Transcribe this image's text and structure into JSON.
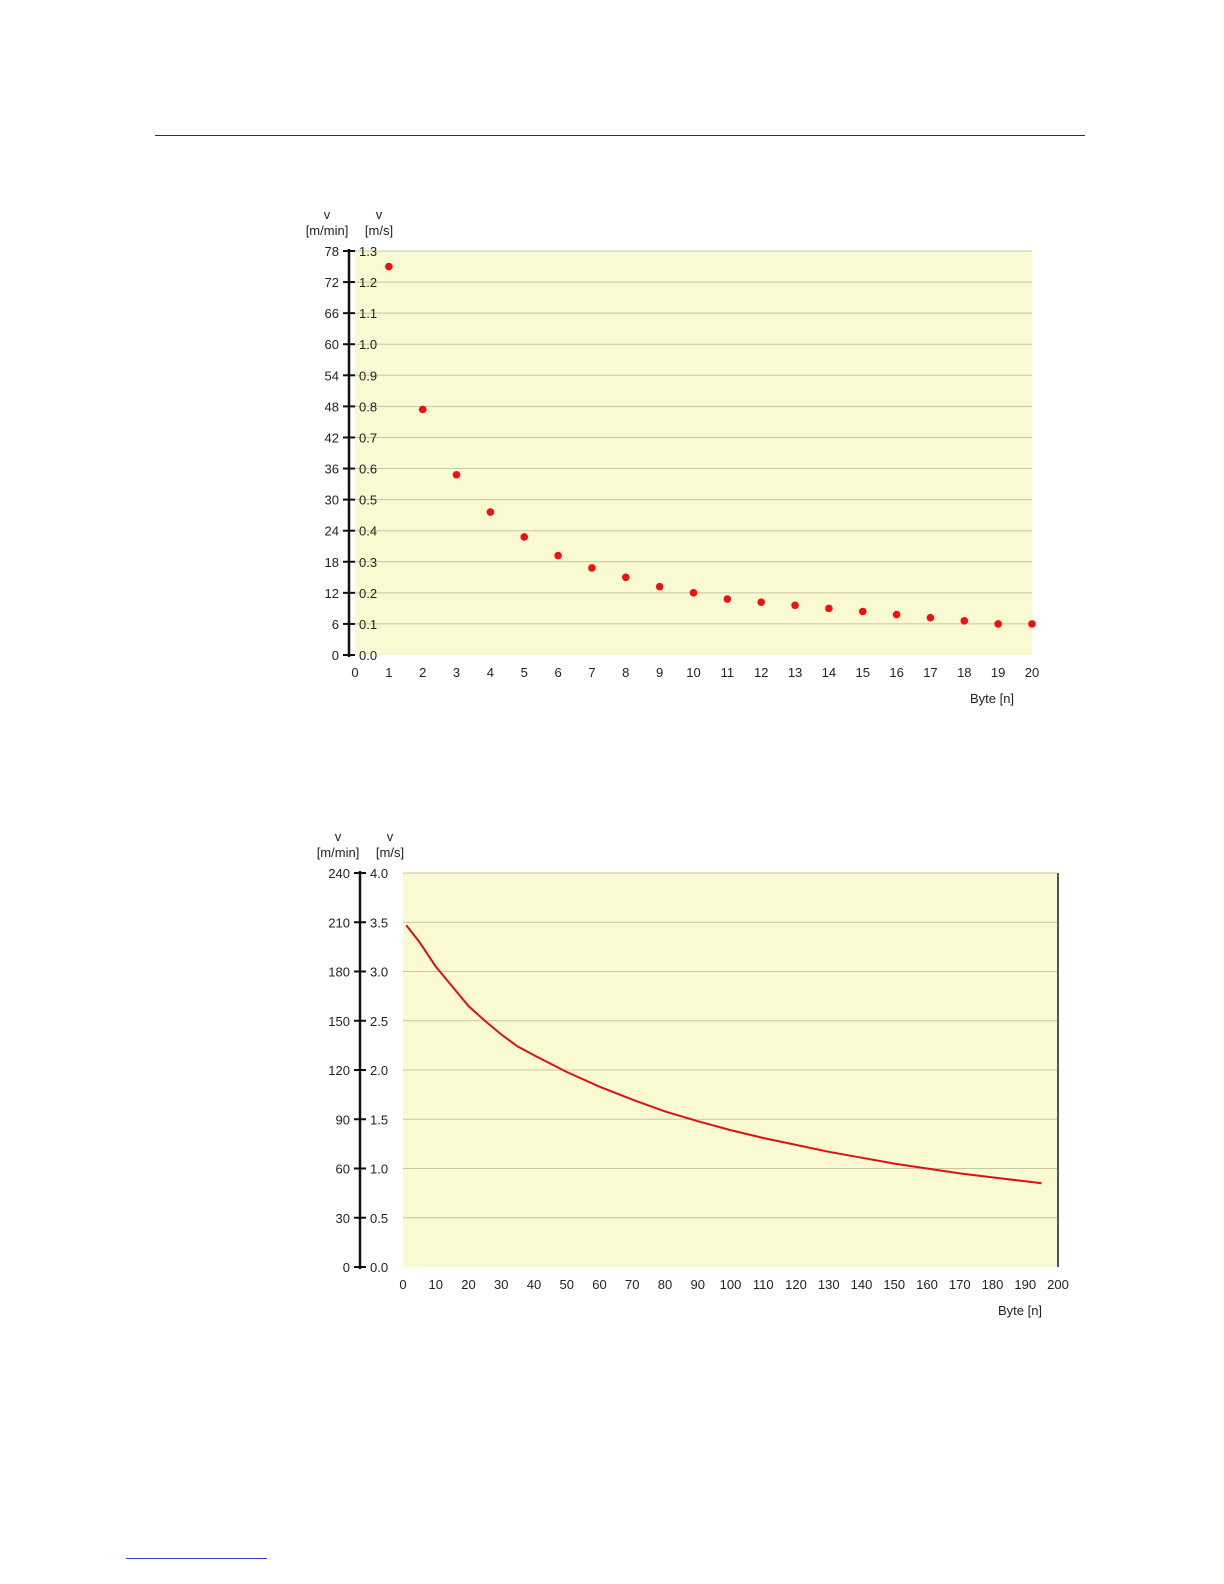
{
  "chart_data": [
    {
      "type": "scatter",
      "title": "",
      "y_axis_left": {
        "label_line1": "v",
        "label_line2": "[m/min]",
        "ticks": [
          0,
          6,
          12,
          18,
          24,
          30,
          36,
          42,
          48,
          54,
          60,
          66,
          72,
          78
        ]
      },
      "y_axis_right": {
        "label_line1": "v",
        "label_line2": "[m/s]",
        "ticks": [
          "0.0",
          "0.1",
          "0.2",
          "0.3",
          "0.4",
          "0.5",
          "0.6",
          "0.7",
          "0.8",
          "0.9",
          "1.0",
          "1.1",
          "1.2",
          "1.3"
        ]
      },
      "xlabel": "Byte [n]",
      "xlim": [
        0,
        20
      ],
      "ylim": [
        0,
        1.3
      ],
      "x_ticks": [
        0,
        1,
        2,
        3,
        4,
        5,
        6,
        7,
        8,
        9,
        10,
        11,
        12,
        13,
        14,
        15,
        16,
        17,
        18,
        19,
        20
      ],
      "grid": true,
      "colors": {
        "plot_bg": "#fafad2",
        "grid": "#c8c8a0",
        "point": "#ee1111"
      },
      "series": [
        {
          "x": [
            1,
            2,
            3,
            4,
            5,
            6,
            7,
            8,
            9,
            10,
            11,
            12,
            13,
            14,
            15,
            16,
            17,
            18,
            19,
            20
          ],
          "y": [
            1.25,
            0.79,
            0.58,
            0.46,
            0.38,
            0.32,
            0.28,
            0.25,
            0.22,
            0.2,
            0.18,
            0.17,
            0.16,
            0.15,
            0.14,
            0.13,
            0.12,
            0.11,
            0.1,
            0.1
          ]
        }
      ]
    },
    {
      "type": "line",
      "title": "",
      "y_axis_left": {
        "label_line1": "v",
        "label_line2": "[m/min]",
        "ticks": [
          0,
          30,
          60,
          90,
          120,
          150,
          180,
          210,
          240
        ]
      },
      "y_axis_right": {
        "label_line1": "v",
        "label_line2": "[m/s]",
        "ticks": [
          "0.0",
          "0.5",
          "1.0",
          "1.5",
          "2.0",
          "2.5",
          "3.0",
          "3.5",
          "4.0"
        ]
      },
      "xlabel": "Byte [n]",
      "xlim": [
        0,
        200
      ],
      "ylim": [
        0,
        4.0
      ],
      "x_ticks": [
        0,
        10,
        20,
        30,
        40,
        50,
        60,
        70,
        80,
        90,
        100,
        110,
        120,
        130,
        140,
        150,
        160,
        170,
        180,
        190,
        200
      ],
      "grid": true,
      "colors": {
        "plot_bg": "#fafad2",
        "grid": "#c8c8a0",
        "line": "#dd1111"
      },
      "series": [
        {
          "x": [
            1,
            5,
            10,
            15,
            20,
            25,
            30,
            35,
            40,
            50,
            60,
            70,
            80,
            90,
            100,
            110,
            120,
            130,
            140,
            150,
            160,
            170,
            180,
            190,
            195
          ],
          "y": [
            3.47,
            3.3,
            3.05,
            2.85,
            2.65,
            2.5,
            2.36,
            2.24,
            2.15,
            1.98,
            1.83,
            1.7,
            1.58,
            1.48,
            1.39,
            1.31,
            1.24,
            1.17,
            1.11,
            1.05,
            1.0,
            0.95,
            0.91,
            0.87,
            0.85
          ]
        }
      ]
    }
  ]
}
